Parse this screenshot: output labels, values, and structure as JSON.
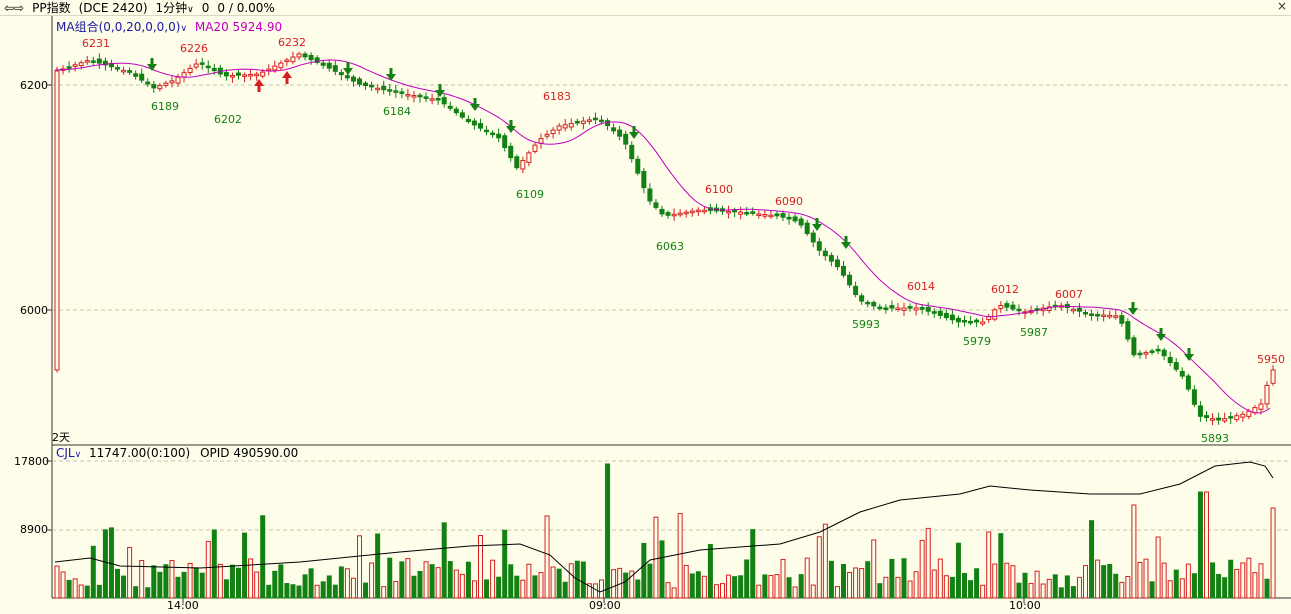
{
  "toolbar": {
    "back_icon": "back-arrows-icon",
    "symbol": "PP指数",
    "code": "(DCE 2420)",
    "period": "1分钟",
    "change": "0",
    "change_pct": "0 / 0.00%",
    "close_symbol": "×"
  },
  "main_legend": {
    "indicator": "MA组合(0,0,20,0,0,0)",
    "ma_label": "MA20 5924.90"
  },
  "volume_legend": {
    "indicator": "CJL",
    "volume": "11747.00(0:100)",
    "opid": "OPID 490590.00"
  },
  "days_label": "2天",
  "price_axis": [
    "6200",
    "6000"
  ],
  "volume_axis": [
    "17800",
    "8900"
  ],
  "time_axis": [
    "14:00",
    "09:00",
    "10:00"
  ],
  "colors": {
    "up": "#d62020",
    "down": "#138013",
    "ma": "#c000c0",
    "background": "#fdfde9"
  },
  "chart_data": [
    {
      "type": "candlestick",
      "yticks": [
        6200,
        6000
      ],
      "high_labels": [
        "6231",
        "6226",
        "6232",
        "6183",
        "6100",
        "6090",
        "6014",
        "6012",
        "6007",
        "5950"
      ],
      "low_labels": [
        "6189",
        "6202",
        "6184",
        "6109",
        "6063",
        "5993",
        "5979",
        "5987",
        "5893"
      ],
      "ma_series": "MA20"
    },
    {
      "type": "bar",
      "yticks": [
        17800,
        8900
      ],
      "series": [
        {
          "name": "CJL"
        },
        {
          "name": "OPID"
        }
      ]
    }
  ]
}
